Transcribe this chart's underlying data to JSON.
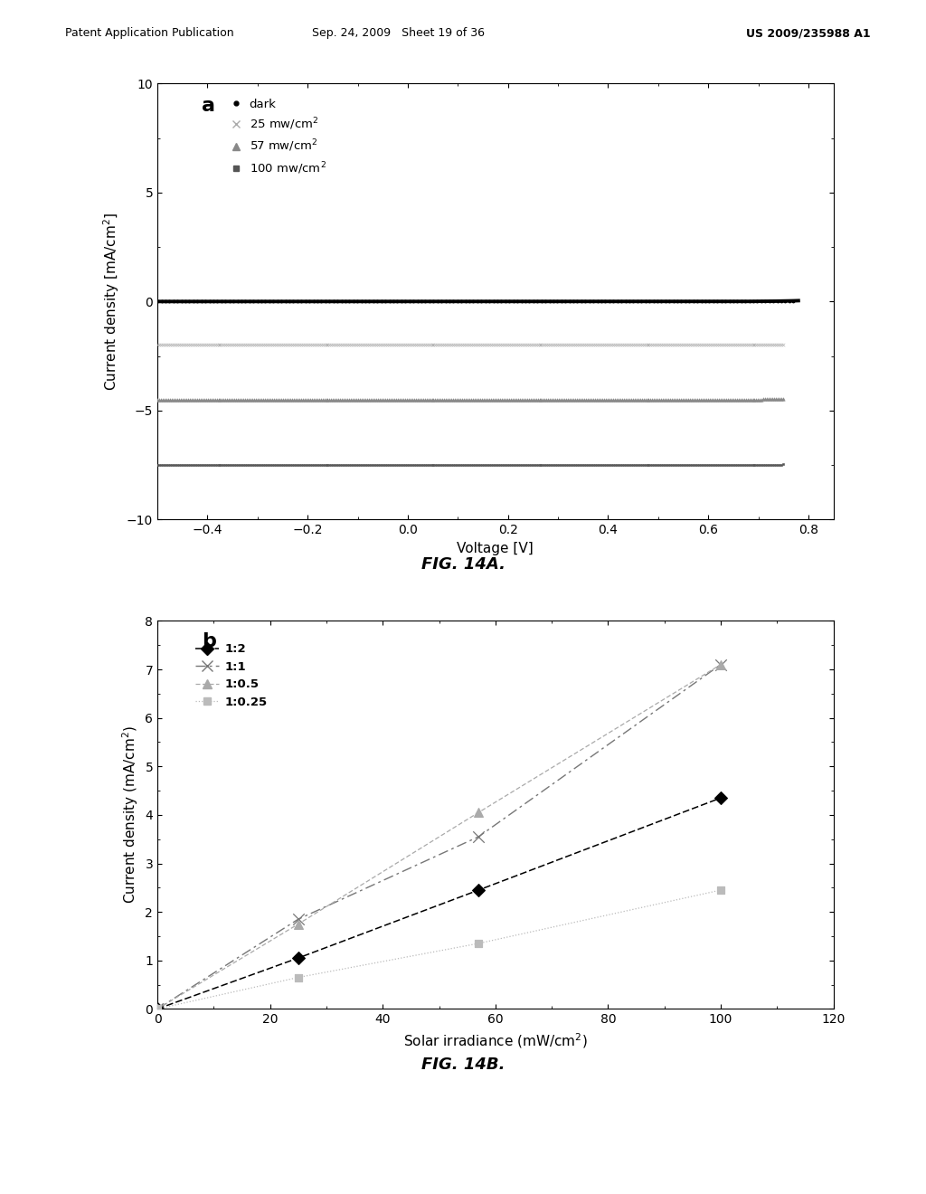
{
  "header_left": "Patent Application Publication",
  "header_mid": "Sep. 24, 2009   Sheet 19 of 36",
  "header_right": "US 2009/235988 A1",
  "fig14a_caption": "FIG. 14A.",
  "fig14b_caption": "FIG. 14B.",
  "plot_a": {
    "xlabel": "Voltage [V]",
    "ylabel": "Current density [mA/cm$^2$]",
    "xlim": [
      -0.5,
      0.85
    ],
    "ylim": [
      -10,
      10
    ],
    "xticks": [
      -0.4,
      -0.2,
      0.0,
      0.2,
      0.4,
      0.6,
      0.8
    ],
    "yticks": [
      -10,
      -5,
      0,
      5,
      10
    ],
    "dark_J0": 2e-09,
    "dark_n": 1.8,
    "illum_curves": [
      {
        "Jsc": -2.0,
        "n": 1.8,
        "J0": 2e-09,
        "color": "#aaaaaa",
        "marker": "x",
        "ms": 2.5,
        "label": "25 mw/cm$^2$"
      },
      {
        "Jsc": -4.5,
        "n": 1.8,
        "J0": 2e-09,
        "color": "#888888",
        "marker": "^",
        "ms": 2.5,
        "label": "57 mw/cm$^2$"
      },
      {
        "Jsc": -7.5,
        "n": 1.8,
        "J0": 2e-09,
        "color": "#555555",
        "marker": "s",
        "ms": 2.0,
        "label": "100 mw/cm$^2$"
      }
    ]
  },
  "plot_b": {
    "xlabel": "Solar irradiance (mW/cm$^2$)",
    "ylabel": "Current density (mA/cm$^2$)",
    "xlim": [
      0,
      120
    ],
    "ylim": [
      0,
      8
    ],
    "xticks": [
      0,
      20,
      40,
      60,
      80,
      100,
      120
    ],
    "yticks": [
      0,
      1,
      2,
      3,
      4,
      5,
      6,
      7,
      8
    ],
    "series": [
      {
        "label": "1:2",
        "x": [
          0,
          25,
          57,
          100
        ],
        "y": [
          0,
          1.05,
          2.45,
          4.35
        ],
        "color": "#000000",
        "marker": "D",
        "ms": 7
      },
      {
        "label": "1:1",
        "x": [
          0,
          25,
          57,
          100
        ],
        "y": [
          0,
          1.85,
          3.55,
          7.1
        ],
        "color": "#777777",
        "marker": "x",
        "ms": 9
      },
      {
        "label": "1:0.5",
        "x": [
          0,
          25,
          57,
          100
        ],
        "y": [
          0,
          1.75,
          4.05,
          7.1
        ],
        "color": "#aaaaaa",
        "marker": "^",
        "ms": 7
      },
      {
        "label": "1:0.25",
        "x": [
          0,
          25,
          57,
          100
        ],
        "y": [
          0,
          0.65,
          1.35,
          2.45
        ],
        "color": "#bbbbbb",
        "marker": "s",
        "ms": 6
      }
    ]
  }
}
